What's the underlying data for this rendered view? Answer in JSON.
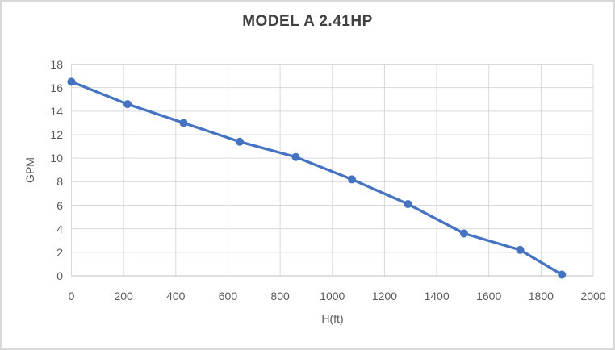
{
  "window": {
    "background": "#ffffff",
    "border_color": "#d9d9d9"
  },
  "colors": {
    "line": "#4472C4",
    "marker": "#4472C4",
    "grid": "#D9D9D9",
    "axis": "#BFBFBF",
    "tick_text": "#595959",
    "title_text": "#404040"
  },
  "chart_data": {
    "type": "line",
    "title": "MODEL A 2.41HP",
    "xlabel": "H(ft)",
    "ylabel": "GPM",
    "x": [
      0,
      215,
      430,
      645,
      860,
      1075,
      1290,
      1505,
      1720,
      1880
    ],
    "y": [
      16.5,
      14.6,
      13.0,
      11.4,
      10.1,
      8.2,
      6.1,
      3.6,
      2.2,
      0.1
    ],
    "xlim": [
      0,
      2000
    ],
    "ylim": [
      0,
      18
    ],
    "x_ticks": [
      0,
      200,
      400,
      600,
      800,
      1000,
      1200,
      1400,
      1600,
      1800,
      2000
    ],
    "y_ticks": [
      0,
      2,
      4,
      6,
      8,
      10,
      12,
      14,
      16,
      18
    ],
    "grid": true,
    "legend": false,
    "marker_style": "circle"
  }
}
